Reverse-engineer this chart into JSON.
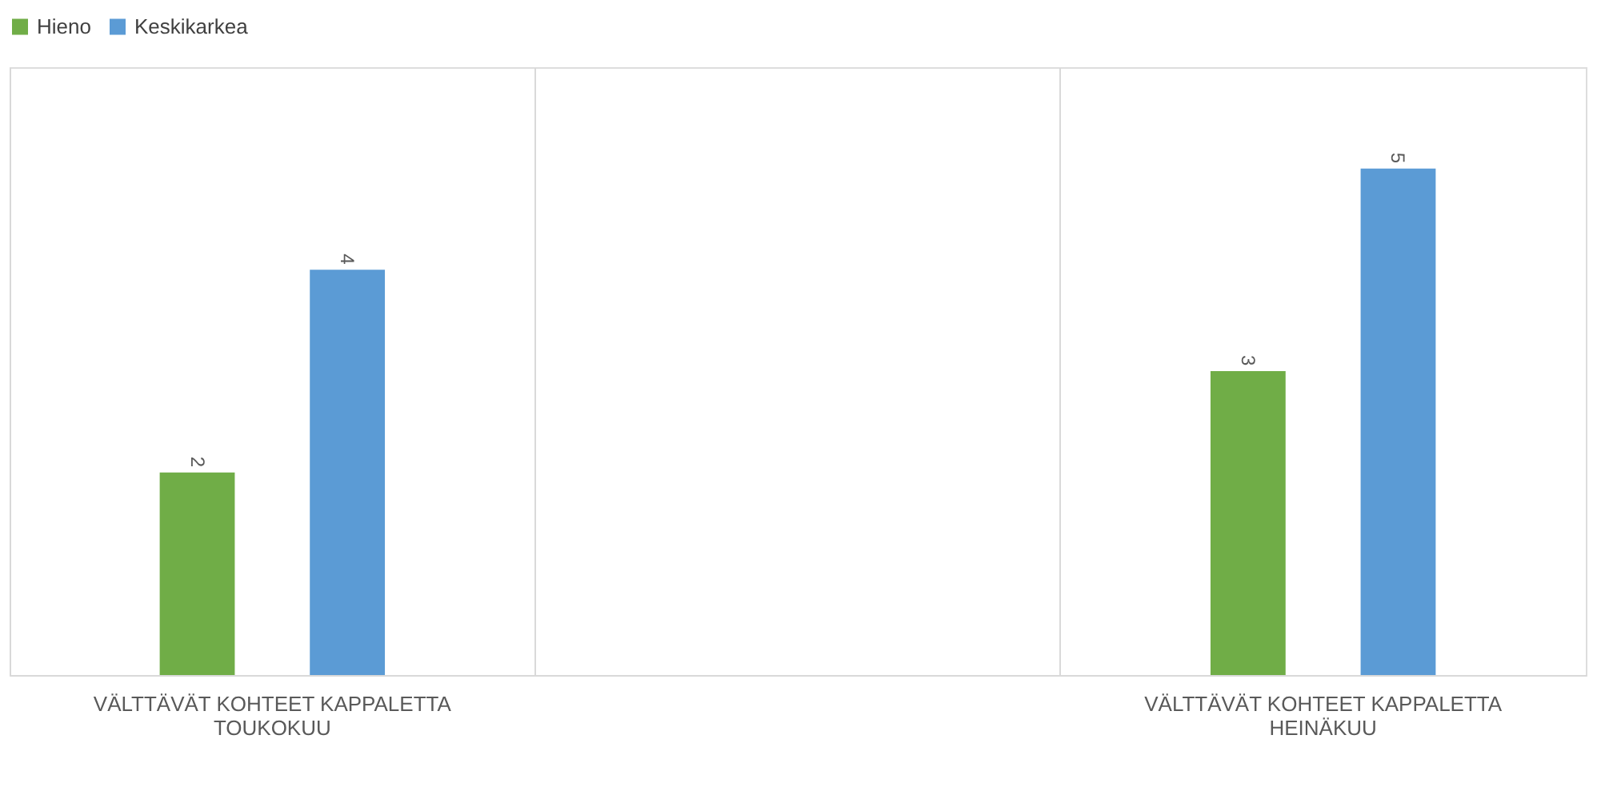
{
  "chart_data": {
    "type": "bar",
    "categories": [
      "VÄLTTÄVÄT KOHTEET KAPPALETTA TOUKOKUU",
      null,
      "VÄLTTÄVÄT KOHTEET KAPPALETTA HEINÄKUU"
    ],
    "series": [
      {
        "name": "Hieno",
        "color": "#70ad47",
        "values": [
          2,
          null,
          3
        ]
      },
      {
        "name": "Keskikarkea",
        "color": "#5b9bd5",
        "values": [
          4,
          null,
          5
        ]
      }
    ],
    "ylim": [
      0,
      6
    ],
    "tick_labels": "x",
    "grid": "x",
    "legend": "top",
    "data_labels": true
  }
}
